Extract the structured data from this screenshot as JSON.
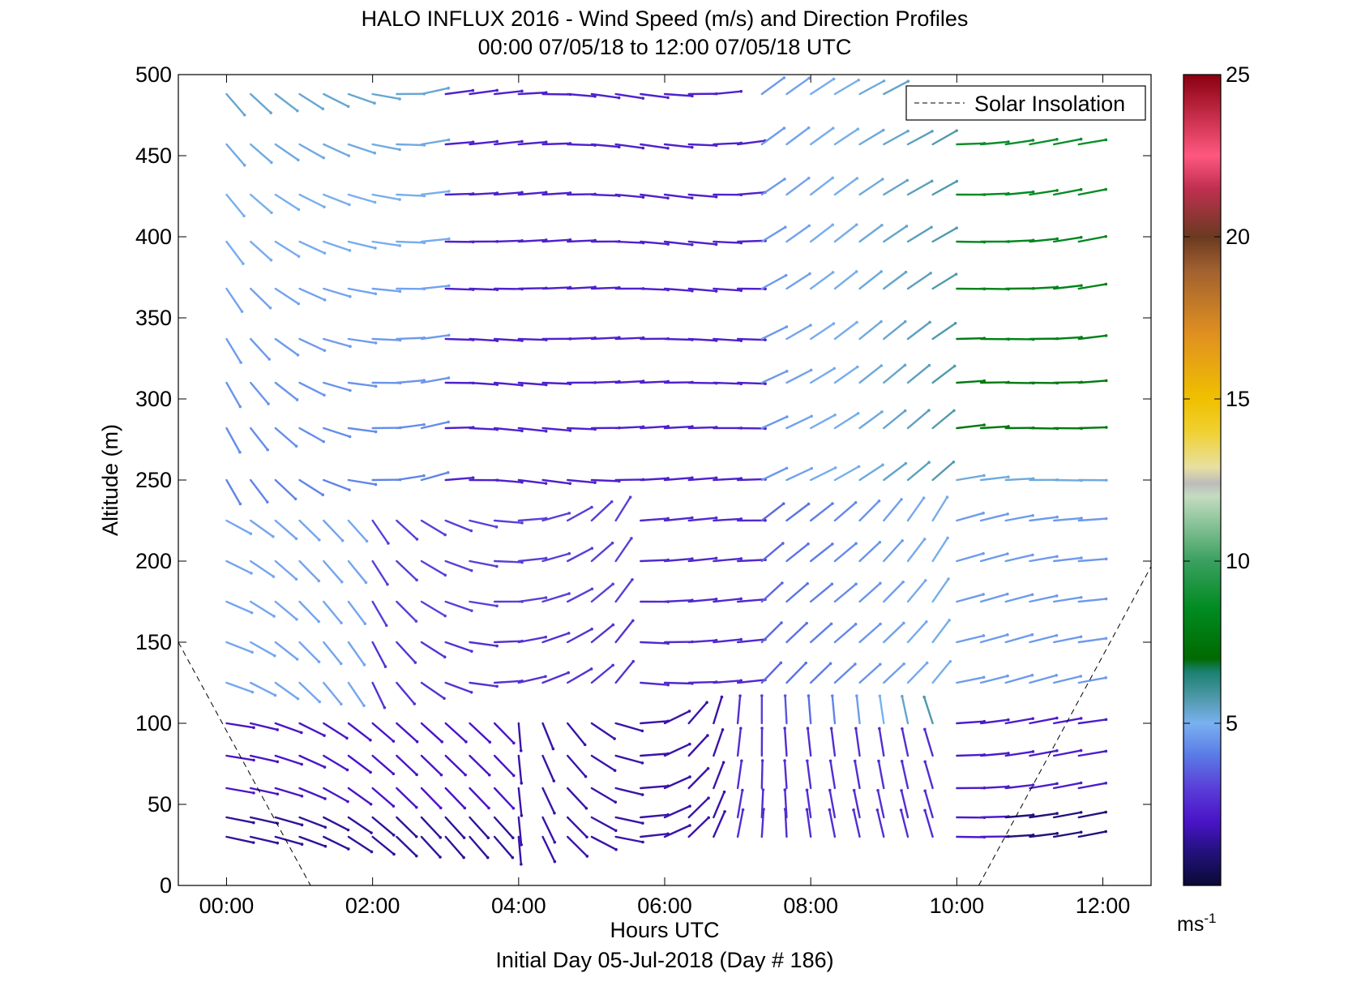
{
  "chart_data": {
    "type": "scatter",
    "subtype": "wind-barb-profile",
    "title": "HALO INFLUX 2016 - Wind Speed (m/s) and Direction Profiles",
    "subtitle": "00:00 07/05/18 to 12:00 07/05/18  UTC",
    "xlabel": "Hours UTC",
    "xlabel_sub": "Initial Day 05-Jul-2018 (Day # 186)",
    "ylabel": "Altitude (m)",
    "xlim": [
      -0.66,
      12.66
    ],
    "ylim": [
      0,
      500
    ],
    "xticks": [
      0,
      2,
      4,
      6,
      8,
      10,
      12
    ],
    "xtick_labels": [
      "00:00",
      "02:00",
      "04:00",
      "06:00",
      "08:00",
      "10:00",
      "12:00"
    ],
    "yticks": [
      0,
      50,
      100,
      150,
      200,
      250,
      300,
      350,
      400,
      450,
      500
    ],
    "ytick_labels": [
      "0",
      "50",
      "100",
      "150",
      "200",
      "250",
      "300",
      "350",
      "400",
      "450",
      "500"
    ],
    "legend": {
      "label": "Solar Insolation",
      "placement": "top-right"
    },
    "solar_insolation": {
      "morning": {
        "x": [
          -0.66,
          1.15
        ],
        "y": [
          150,
          0
        ]
      },
      "evening": {
        "x": [
          10.3,
          12.7
        ],
        "y": [
          0,
          200
        ]
      }
    },
    "colorbar": {
      "min": 0,
      "max": 25,
      "ticks": [
        5,
        10,
        15,
        20,
        25
      ],
      "tick_labels": [
        "5",
        "10",
        "15",
        "20",
        "25"
      ],
      "unit_label": "ms",
      "unit_exponent": "-1",
      "colorstops": [
        {
          "v": 0,
          "c": "#0a0a35"
        },
        {
          "v": 1,
          "c": "#22117a"
        },
        {
          "v": 2,
          "c": "#4a14c8"
        },
        {
          "v": 3,
          "c": "#5a3ed8"
        },
        {
          "v": 4,
          "c": "#5a7ae6"
        },
        {
          "v": 5,
          "c": "#7ab0f0"
        },
        {
          "v": 5.8,
          "c": "#4e98a8"
        },
        {
          "v": 6.6,
          "c": "#1a8070"
        },
        {
          "v": 7,
          "c": "#006a00"
        },
        {
          "v": 8.5,
          "c": "#008a20"
        },
        {
          "v": 10,
          "c": "#3aa060"
        },
        {
          "v": 12,
          "c": "#c4dcc0"
        },
        {
          "v": 12.4,
          "c": "#bcbcbc"
        },
        {
          "v": 12.9,
          "c": "#e8e0a0"
        },
        {
          "v": 14,
          "c": "#f0d030"
        },
        {
          "v": 15,
          "c": "#f0c000"
        },
        {
          "v": 17,
          "c": "#e09020"
        },
        {
          "v": 19,
          "c": "#a06030"
        },
        {
          "v": 20,
          "c": "#6a3a20"
        },
        {
          "v": 21.5,
          "c": "#c03050"
        },
        {
          "v": 22.5,
          "c": "#ff5880"
        },
        {
          "v": 25,
          "c": "#8a0010"
        }
      ]
    },
    "wind_vectors": {
      "description_units": "hours UTC, altitude m, speed m/s, direction deg of vector (math angle, 0=pointing right)",
      "times": [
        0.0,
        0.33,
        0.67,
        1.0,
        1.33,
        1.67,
        2.0,
        2.33,
        2.67,
        3.0,
        3.33,
        3.67,
        4.0,
        4.33,
        4.67,
        5.0,
        5.33,
        5.67,
        6.0,
        6.33,
        6.67,
        7.0,
        7.33,
        7.67,
        8.0,
        8.33,
        8.67,
        9.0,
        9.33,
        9.67,
        10.0,
        10.33,
        10.67,
        11.0,
        11.33,
        11.67
      ],
      "altitudes": [
        30,
        42,
        60,
        80,
        100,
        125,
        150,
        175,
        200,
        225,
        250,
        282,
        310,
        337,
        368,
        397,
        426,
        457,
        488
      ]
    }
  }
}
